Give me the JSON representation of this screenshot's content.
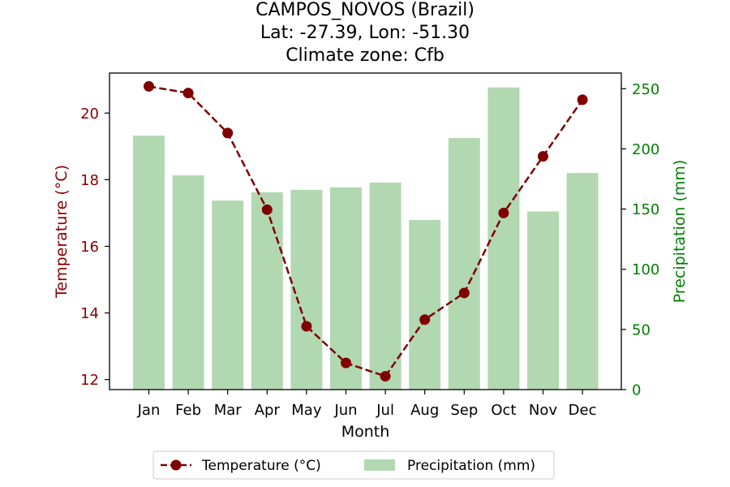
{
  "title": {
    "line1": "CAMPOS_NOVOS (Brazil)",
    "line2": "Lat: -27.39, Lon: -51.30",
    "line3": "Climate zone: Cfb"
  },
  "chart_data": {
    "type": "bar+line",
    "categories": [
      "Jan",
      "Feb",
      "Mar",
      "Apr",
      "May",
      "Jun",
      "Jul",
      "Aug",
      "Sep",
      "Oct",
      "Nov",
      "Dec"
    ],
    "xlabel": "Month",
    "series": [
      {
        "name": "Temperature (°C)",
        "type": "line",
        "axis": "left",
        "color": "#800000",
        "linestyle": "dashed",
        "marker": "circle",
        "values": [
          20.8,
          20.6,
          19.4,
          17.1,
          13.6,
          12.5,
          12.1,
          13.8,
          14.6,
          17.0,
          18.7,
          20.4
        ]
      },
      {
        "name": "Precipitation (mm)",
        "type": "bar",
        "axis": "right",
        "color": "#b2d8b2",
        "values": [
          211,
          178,
          157,
          164,
          166,
          168,
          172,
          141,
          209,
          251,
          148,
          180
        ]
      }
    ],
    "y_left": {
      "label": "Temperature (°C)",
      "color": "#8b0000",
      "lim": [
        11.7,
        21.2
      ],
      "ticks": [
        12,
        14,
        16,
        18,
        20
      ]
    },
    "y_right": {
      "label": "Precipitation (mm)",
      "color": "#008000",
      "lim": [
        0,
        263
      ],
      "ticks": [
        0,
        50,
        100,
        150,
        200,
        250
      ]
    },
    "legend": {
      "placement": "bottom-center"
    },
    "grid": false
  }
}
